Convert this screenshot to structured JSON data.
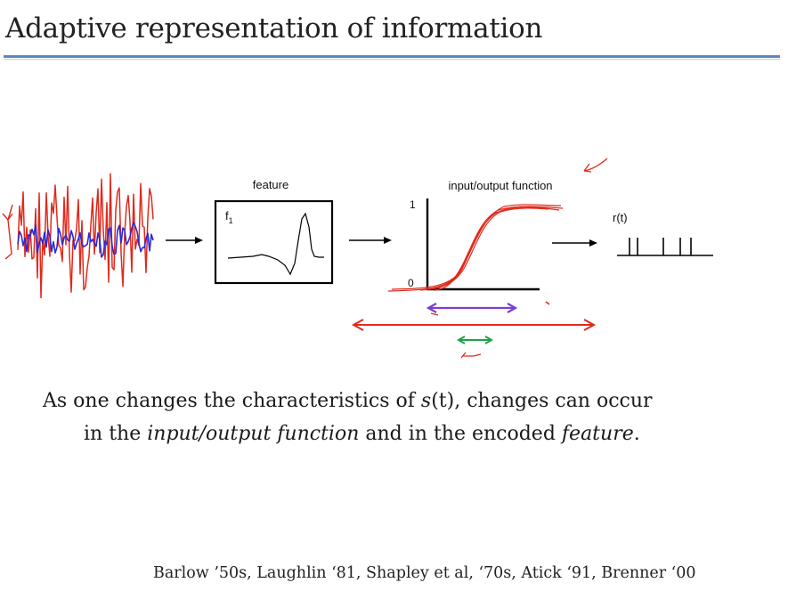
{
  "slide": {
    "title": "Adaptive representation of information",
    "diagram": {
      "feature_label": "feature",
      "feature_symbol": "f",
      "feature_subscript": "1",
      "io_label": "input/output function",
      "io_y_max": "1",
      "io_y_min": "0",
      "response_label": "r(t)"
    },
    "caption": {
      "line1_a": "As one changes the characteristics of ",
      "line1_s": "s",
      "line1_b": "(t), changes can occur",
      "line2_a": "in the ",
      "line2_io": "input/output function",
      "line2_b": " and in the encoded ",
      "line2_feature": "feature",
      "line2_c": "."
    },
    "references": "Barlow ’50s, Laughlin ‘81, Shapley et al, ‘70s, Atick ‘91, Brenner ‘00"
  },
  "colors": {
    "title_rule": "#5b86c6",
    "annotation_red": "#e02a1c",
    "annotation_purple": "#7b3fd0",
    "annotation_green": "#1fa34a",
    "signal_blue": "#2a2ad8"
  }
}
